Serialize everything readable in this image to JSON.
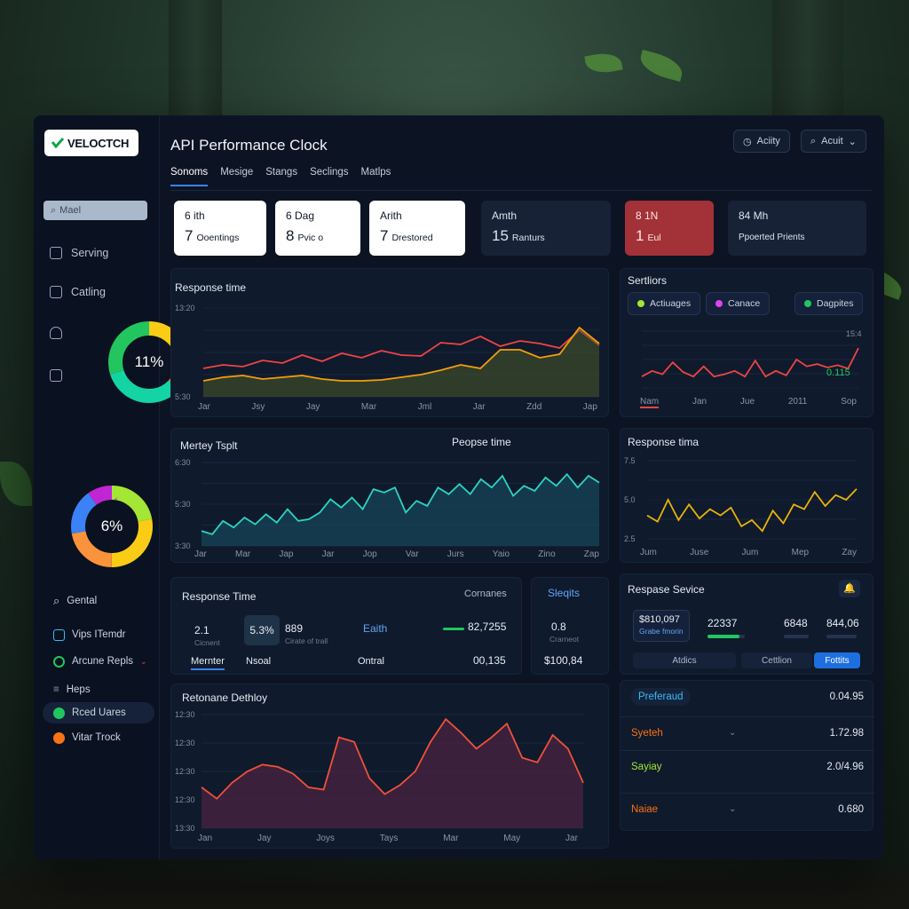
{
  "app": {
    "logo_text": "VELOCTCH",
    "title": "API Performance  Clock"
  },
  "header": {
    "activity_label": "Aciity",
    "account_label": "Acuit"
  },
  "tabs": [
    "Sonoms",
    "Mesige",
    "Stangs",
    "Seclings",
    "Matlps"
  ],
  "sidebar": {
    "search_placeholder": "Mael",
    "items": [
      {
        "label": "Serving"
      },
      {
        "label": "Catling"
      }
    ],
    "donut_top": {
      "label": "11%",
      "segments": [
        {
          "fraction": 0.25,
          "color": "#facc15"
        },
        {
          "fraction": 0.12,
          "color": "#f97316"
        },
        {
          "fraction": 0.33,
          "color": "#14d4a4"
        },
        {
          "fraction": 0.3,
          "color": "#22c55e"
        }
      ]
    },
    "donut_bottom": {
      "label": "6%",
      "segments": [
        {
          "fraction": 0.22,
          "color": "#a3e635"
        },
        {
          "fraction": 0.28,
          "color": "#facc15"
        },
        {
          "fraction": 0.22,
          "color": "#fb923c"
        },
        {
          "fraction": 0.18,
          "color": "#3b82f6"
        },
        {
          "fraction": 0.1,
          "color": "#c026d3"
        }
      ]
    },
    "lower_items": [
      {
        "label": "Gental",
        "icon": "search-icon"
      },
      {
        "label": "Vips ITemdr",
        "icon": "shield-icon",
        "color": "#38bdf8"
      },
      {
        "label": "Arcune Repls",
        "icon": "circle-icon",
        "color": "#22c55e"
      },
      {
        "label": "Heps",
        "icon": "menu-icon"
      },
      {
        "label": "Rced Uares",
        "icon": "dollar-icon",
        "color": "#22c55e"
      },
      {
        "label": "Vitar Trock",
        "icon": "star-icon",
        "color": "#f97316"
      }
    ]
  },
  "kpis": [
    {
      "title": "6 ith",
      "value": "7",
      "unit": "Ooentings",
      "style": "white"
    },
    {
      "title": "6 Dag",
      "value": "8",
      "unit": "Pvic o",
      "style": "white"
    },
    {
      "title": "Arith",
      "value": "7",
      "unit": "Drestored",
      "style": "white"
    },
    {
      "title": "Amth",
      "value": "15",
      "unit": "Ranturs",
      "style": "dark"
    },
    {
      "title": "8 1N",
      "value": "1",
      "unit": "Eul",
      "style": "red"
    },
    {
      "title": "84 Mh",
      "value": "",
      "unit": "Ppoerted Prients",
      "style": "dark"
    }
  ],
  "chart1": {
    "title": "Response time",
    "y_ticks": [
      "13:20",
      "5:30"
    ],
    "x_labels": [
      "Jar",
      "Jsy",
      "Jay",
      "Mar",
      "Jml",
      "Jar",
      "Zdd",
      "Jap"
    ],
    "chart_data": {
      "type": "line",
      "series": [
        {
          "color": "#ef4444",
          "values": [
            32,
            36,
            34,
            41,
            38,
            47,
            40,
            49,
            44,
            52,
            47,
            46,
            61,
            59,
            68,
            57,
            63,
            60,
            55,
            75,
            58
          ]
        },
        {
          "color": "#f59e0b",
          "values": [
            18,
            22,
            24,
            20,
            22,
            24,
            20,
            18,
            18,
            19,
            22,
            25,
            30,
            36,
            32,
            53,
            53,
            44,
            48,
            78,
            60
          ]
        }
      ]
    }
  },
  "chart2": {
    "title": "Sertliors",
    "chips": [
      {
        "label": "Actiuages",
        "color": "#a3e635"
      },
      {
        "label": "Canace",
        "color": "#d946ef"
      },
      {
        "label": "Dagpites",
        "color": "#22c55e"
      }
    ],
    "y_tick": "15:4",
    "value_label": "0.115",
    "x_labels": [
      "Nam",
      "Jan",
      "Jue",
      "2011",
      "Sop"
    ],
    "chart_data": {
      "type": "line",
      "series": [
        {
          "color": "#ef4444",
          "values": [
            20,
            30,
            24,
            45,
            28,
            20,
            38,
            20,
            24,
            30,
            20,
            48,
            20,
            30,
            22,
            50,
            38,
            42,
            36,
            40,
            34,
            70
          ]
        }
      ]
    }
  },
  "chart3": {
    "title_left": "Mertey Tsplt",
    "title_center": "Peopse time",
    "y_ticks": [
      "6:30",
      "5:30",
      "3:30"
    ],
    "x_labels": [
      "Jar",
      "Mar",
      "Jap",
      "Jar",
      "Jop",
      "Var",
      "Jurs",
      "Yaio",
      "Zino",
      "Zap"
    ],
    "chart_data": {
      "type": "area",
      "series": [
        {
          "color": "#2dd4bf",
          "values": [
            18,
            14,
            30,
            22,
            34,
            26,
            38,
            28,
            44,
            30,
            32,
            40,
            56,
            46,
            58,
            44,
            68,
            64,
            70,
            40,
            54,
            48,
            70,
            62,
            74,
            62,
            80,
            70,
            84,
            60,
            72,
            66,
            82,
            72,
            86,
            70,
            84,
            76
          ]
        }
      ]
    }
  },
  "chart4": {
    "title": "Response tima",
    "y_ticks": [
      "7.5",
      "5.0",
      "2.5"
    ],
    "x_labels": [
      "Jum",
      "Juse",
      "Jum",
      "Mep",
      "Zay"
    ],
    "chart_data": {
      "type": "line",
      "series": [
        {
          "color": "#eab308",
          "values": [
            30,
            22,
            50,
            24,
            44,
            26,
            38,
            30,
            40,
            16,
            24,
            10,
            36,
            20,
            44,
            38,
            60,
            42,
            56,
            50,
            64
          ]
        }
      ]
    }
  },
  "stats1": {
    "title": "Response Time",
    "right_label": "Cornanes",
    "a_value": "2.1",
    "a_sub": "Cicnent",
    "b_value": "5.3%",
    "c_value": "889",
    "c_sub": "Cirate of trall",
    "tab_a": "Mernter",
    "tab_b": "Nsoal",
    "earth_label": "Eaith",
    "earth_value": "82,7255",
    "ontral_label": "Ontral",
    "ontral_value": "00,135"
  },
  "stats2": {
    "title": "Sleqits",
    "value": "0.8",
    "sub": "Crarneot",
    "money": "$100,84"
  },
  "service": {
    "title": "Respase Sevice",
    "box_value": "$810,097",
    "box_sub": "Grabe fmorin",
    "v1": "22337",
    "v2": "6848",
    "v3": "844,06",
    "btn_a": "Atdics",
    "btn_b": "Cettlion",
    "btn_c": "Fottits"
  },
  "chart5": {
    "title": "Retonane Dethloy",
    "y_ticks": [
      "12:30",
      "12:30",
      "12:30",
      "12:30",
      "13:30"
    ],
    "x_labels": [
      "Jan",
      "Jay",
      "Joys",
      "Tays",
      "Mar",
      "May",
      "Jar"
    ],
    "chart_data": {
      "type": "area",
      "series": [
        {
          "color": "#f0513a",
          "values": [
            36,
            26,
            40,
            50,
            56,
            54,
            48,
            36,
            34,
            80,
            76,
            44,
            30,
            38,
            50,
            76,
            96,
            84,
            70,
            80,
            92,
            62,
            58,
            82,
            70,
            40
          ]
        }
      ]
    }
  },
  "list": {
    "header_label": "Preferaud",
    "header_value": "0.04.95",
    "rows": [
      {
        "label": "Syeteh",
        "value": "1.72.98",
        "color": "#f97316"
      },
      {
        "label": "Sayiay",
        "value": "2.0/4.96",
        "color": "#a3e635"
      },
      {
        "label": "Naiae",
        "value": "0.680",
        "color": "#f97316"
      }
    ]
  }
}
